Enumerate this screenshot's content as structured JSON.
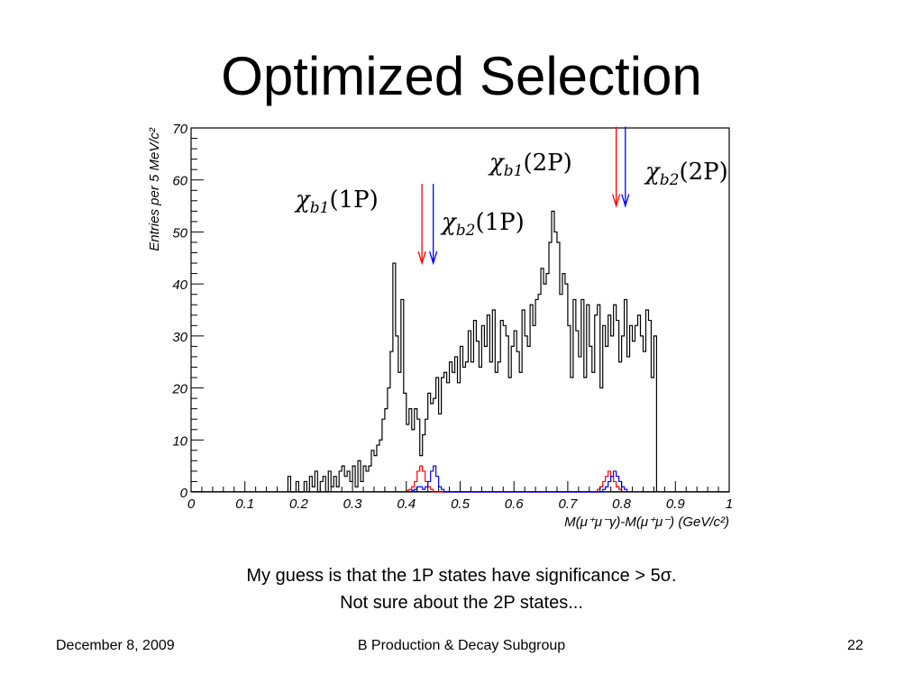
{
  "slide": {
    "title": "Optimized Selection",
    "caption_line1": "My guess is that the 1P states have significance > 5σ.",
    "caption_line2": "Not sure about the 2P states...",
    "footer_date": "December 8, 2009",
    "footer_center": "B Production & Decay Subgroup",
    "footer_page": "22"
  },
  "chart_data": {
    "type": "histogram",
    "title": "",
    "xlabel": "M(μ⁺μ⁻γ)-M(μ⁺μ⁻)  (GeV/c²)",
    "ylabel": "Entries per 5 MeV/c²",
    "xlim": [
      0,
      1
    ],
    "ylim": [
      0,
      70
    ],
    "bin_width": 0.005,
    "x_ticks": [
      "0",
      "0.1",
      "0.2",
      "0.3",
      "0.4",
      "0.5",
      "0.6",
      "0.7",
      "0.8",
      "0.9",
      "1"
    ],
    "y_ticks": [
      "0",
      "10",
      "20",
      "30",
      "40",
      "50",
      "60",
      "70"
    ],
    "grid": false,
    "series": [
      {
        "color": "#000000",
        "bin_start": 0.18,
        "values": [
          3,
          0,
          0,
          2,
          0,
          0,
          2,
          0,
          3,
          1,
          4,
          0,
          2,
          3,
          0,
          4,
          1,
          3,
          1,
          4,
          5,
          3,
          4,
          2,
          5,
          1,
          6,
          2,
          5,
          4,
          5,
          8,
          7,
          9,
          10,
          14,
          16,
          20,
          27,
          44,
          30,
          23,
          37,
          19,
          13,
          16,
          12,
          16,
          14,
          7,
          11,
          14,
          19,
          17,
          18,
          22,
          15,
          22,
          23,
          21,
          25,
          23,
          26,
          21,
          28,
          24,
          25,
          31,
          25,
          33,
          29,
          24,
          32,
          28,
          34,
          25,
          35,
          23,
          25,
          33,
          32,
          30,
          22,
          28,
          31,
          27,
          23,
          35,
          30,
          28,
          36,
          32,
          37,
          38,
          43,
          40,
          42,
          48,
          54,
          50,
          48,
          38,
          42,
          40,
          32,
          22,
          37,
          31,
          26,
          37,
          22,
          36,
          28,
          23,
          34,
          36,
          20,
          32,
          28,
          34,
          30,
          36,
          33,
          25,
          30,
          37,
          26,
          32,
          29,
          32,
          34,
          30,
          27,
          35,
          33,
          22,
          30
        ]
      },
      {
        "color": "#ff0000",
        "bin_start": 0.4,
        "values": [
          0.3,
          0.5,
          1,
          2,
          4,
          5,
          4,
          2,
          1,
          0.5,
          0,
          0,
          0,
          0,
          0,
          0,
          0,
          0,
          0,
          0,
          0,
          0,
          0,
          0,
          0,
          0,
          0,
          0,
          0,
          0,
          0,
          0,
          0,
          0,
          0,
          0,
          0,
          0,
          0,
          0,
          0,
          0,
          0,
          0,
          0,
          0,
          0,
          0,
          0,
          0,
          0,
          0,
          0,
          0,
          0,
          0,
          0,
          0,
          0,
          0,
          0,
          0,
          0,
          0,
          0,
          0,
          0,
          0,
          0,
          0,
          0,
          0.5,
          1,
          2,
          3,
          4,
          3,
          2,
          1,
          0.5
        ]
      },
      {
        "color": "#0000ff",
        "bin_start": 0.41,
        "values": [
          0.3,
          0.5,
          1,
          1,
          0.5,
          1,
          2,
          4,
          5,
          3,
          1,
          0.5,
          0,
          0,
          0,
          0,
          0,
          0,
          0,
          0,
          0,
          0,
          0,
          0,
          0,
          0,
          0,
          0,
          0,
          0,
          0,
          0,
          0,
          0,
          0,
          0,
          0,
          0,
          0,
          0,
          0,
          0,
          0,
          0,
          0,
          0,
          0,
          0,
          0,
          0,
          0,
          0,
          0,
          0,
          0,
          0,
          0,
          0,
          0,
          0,
          0,
          0,
          0,
          0,
          0,
          0,
          0,
          0,
          0,
          0,
          0,
          0.5,
          1,
          2,
          3,
          4,
          3,
          2,
          1,
          0.5
        ]
      }
    ],
    "annotations": [
      {
        "base": "χ",
        "sub": "b1",
        "rest": "(1P)",
        "arrow_x": 0.429,
        "arrow_y": 44,
        "arrow_color": "#ff0000"
      },
      {
        "base": "χ",
        "sub": "b2",
        "rest": "(1P)",
        "arrow_x": 0.45,
        "arrow_y": 44,
        "arrow_color": "#0000ff"
      },
      {
        "base": "χ",
        "sub": "b1",
        "rest": "(2P)",
        "arrow_x": 0.79,
        "arrow_y": 55,
        "arrow_color": "#ff0000"
      },
      {
        "base": "χ",
        "sub": "b2",
        "rest": "(2P)",
        "arrow_x": 0.807,
        "arrow_y": 55,
        "arrow_color": "#0000ff"
      }
    ]
  }
}
